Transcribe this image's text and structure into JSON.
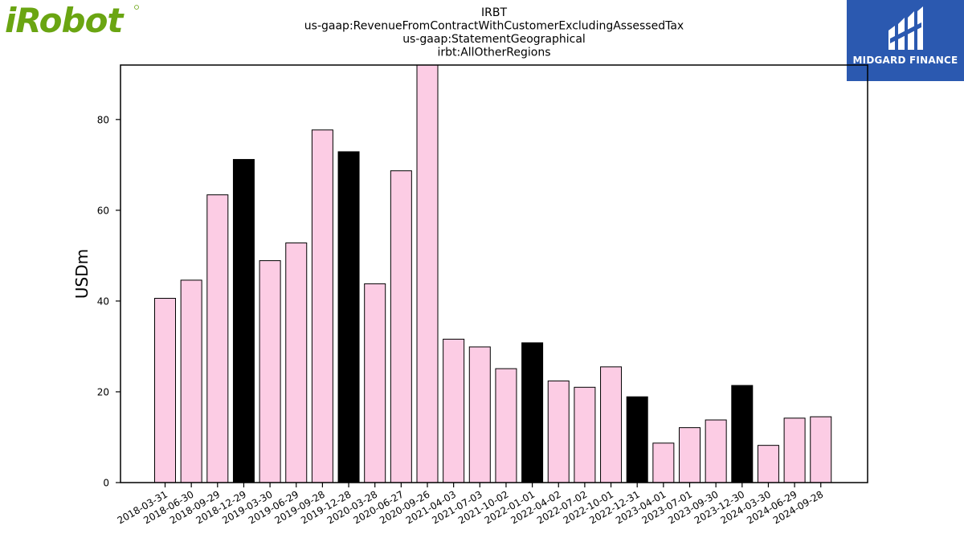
{
  "brand": {
    "left_logo_text": "iRobot",
    "left_logo_color": "#6aa512",
    "right_logo_text": "MIDGARD FINANCE",
    "right_logo_bg": "#2b59b0"
  },
  "chart_data": {
    "type": "bar",
    "title": [
      "IRBT",
      "us-gaap:RevenueFromContractWithCustomerExcludingAssessedTax",
      "us-gaap:StatementGeographical",
      "irbt:AllOtherRegions"
    ],
    "ylabel": "USDm",
    "xlabel": "",
    "ylim": [
      0,
      92
    ],
    "yticks": [
      0,
      20,
      40,
      60,
      80
    ],
    "grid": false,
    "colors": {
      "quarter": "#fccce4",
      "year_end": "#000000",
      "edge": "#000000"
    },
    "categories": [
      "2018-03-31",
      "2018-06-30",
      "2018-09-29",
      "2018-12-29",
      "2019-03-30",
      "2019-06-29",
      "2019-09-28",
      "2019-12-28",
      "2020-03-28",
      "2020-06-27",
      "2020-09-26",
      "2021-04-03",
      "2021-07-03",
      "2021-10-02",
      "2022-01-01",
      "2022-04-02",
      "2022-07-02",
      "2022-10-01",
      "2022-12-31",
      "2023-04-01",
      "2023-07-01",
      "2023-09-30",
      "2023-12-30",
      "2024-03-30",
      "2024-06-29",
      "2024-09-28"
    ],
    "values": [
      40.6,
      44.6,
      63.4,
      71.2,
      48.9,
      52.8,
      77.7,
      72.9,
      43.8,
      68.7,
      92.0,
      31.6,
      29.9,
      25.1,
      30.8,
      22.4,
      21.0,
      25.5,
      18.9,
      8.7,
      12.1,
      13.8,
      21.4,
      8.2,
      14.2,
      14.5
    ],
    "year_end": [
      false,
      false,
      false,
      true,
      false,
      false,
      false,
      true,
      false,
      false,
      false,
      false,
      false,
      false,
      true,
      false,
      false,
      false,
      true,
      false,
      false,
      false,
      true,
      false,
      false,
      false
    ]
  }
}
